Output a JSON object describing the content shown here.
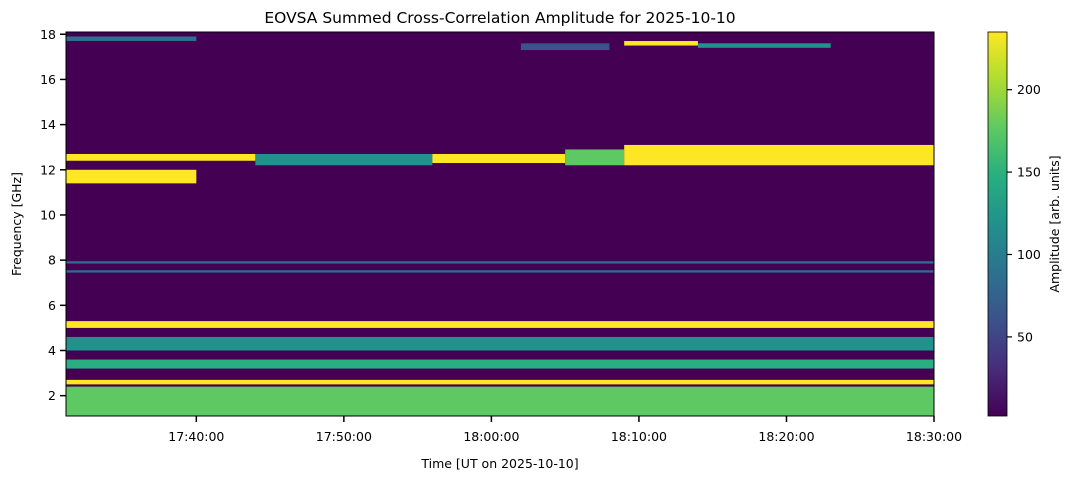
{
  "chart_data": {
    "type": "heatmap",
    "title": "EOVSA Summed Cross-Correlation Amplitude for 2025-10-10",
    "xlabel": "Time [UT on 2025-10-10]",
    "ylabel": "Frequency [GHz]",
    "colorbar_label": "Amplitude [arb. units]",
    "colormap": "viridis",
    "x_range": [
      "17:31:10",
      "18:30:00"
    ],
    "y_range": [
      1.1,
      18.1
    ],
    "c_range": [
      2,
      235
    ],
    "x_ticks": [
      "17:40:00",
      "17:50:00",
      "18:00:00",
      "18:10:00",
      "18:20:00",
      "18:30:00"
    ],
    "y_ticks": [
      2,
      4,
      6,
      8,
      10,
      12,
      14,
      16,
      18
    ],
    "c_ticks": [
      50,
      100,
      150,
      200
    ],
    "background_level": 15,
    "bands": [
      {
        "f_lo": 11.4,
        "f_hi": 12.0,
        "t_start": "17:31:10",
        "t_end": "17:40:00",
        "level": 230
      },
      {
        "f_lo": 12.4,
        "f_hi": 12.7,
        "t_start": "17:31:10",
        "t_end": "17:44:00",
        "level": 235
      },
      {
        "f_lo": 12.2,
        "f_hi": 12.7,
        "t_start": "17:44:00",
        "t_end": "17:56:00",
        "level": 110
      },
      {
        "f_lo": 12.3,
        "f_hi": 12.7,
        "t_start": "17:56:00",
        "t_end": "18:05:00",
        "level": 225
      },
      {
        "f_lo": 12.2,
        "f_hi": 12.9,
        "t_start": "18:05:00",
        "t_end": "18:09:00",
        "level": 180
      },
      {
        "f_lo": 12.2,
        "f_hi": 13.1,
        "t_start": "18:09:00",
        "t_end": "18:30:00",
        "level": 235
      },
      {
        "f_lo": 17.3,
        "f_hi": 17.6,
        "t_start": "18:02:00",
        "t_end": "18:08:00",
        "level": 70
      },
      {
        "f_lo": 17.5,
        "f_hi": 17.7,
        "t_start": "18:09:00",
        "t_end": "18:14:00",
        "level": 235
      },
      {
        "f_lo": 17.4,
        "f_hi": 17.6,
        "t_start": "18:14:00",
        "t_end": "18:23:00",
        "level": 110
      },
      {
        "f_lo": 17.7,
        "f_hi": 17.9,
        "t_start": "17:31:10",
        "t_end": "17:40:00",
        "level": 90
      },
      {
        "f_lo": 5.0,
        "f_hi": 5.3,
        "t_start": "17:31:10",
        "t_end": "18:30:00",
        "level": 235
      },
      {
        "f_lo": 4.0,
        "f_hi": 4.6,
        "t_start": "17:31:10",
        "t_end": "18:30:00",
        "level": 110
      },
      {
        "f_lo": 3.2,
        "f_hi": 3.6,
        "t_start": "17:31:10",
        "t_end": "18:30:00",
        "level": 140
      },
      {
        "f_lo": 2.5,
        "f_hi": 2.7,
        "t_start": "17:31:10",
        "t_end": "18:30:00",
        "level": 225
      },
      {
        "f_lo": 1.1,
        "f_hi": 2.4,
        "t_start": "17:31:10",
        "t_end": "18:30:00",
        "level": 165
      },
      {
        "f_lo": 7.85,
        "f_hi": 7.95,
        "t_start": "17:31:10",
        "t_end": "18:30:00",
        "level": 90
      },
      {
        "f_lo": 7.45,
        "f_hi": 7.55,
        "t_start": "17:31:10",
        "t_end": "18:30:00",
        "level": 80
      }
    ],
    "grid": false,
    "legend": "colorbar right"
  }
}
